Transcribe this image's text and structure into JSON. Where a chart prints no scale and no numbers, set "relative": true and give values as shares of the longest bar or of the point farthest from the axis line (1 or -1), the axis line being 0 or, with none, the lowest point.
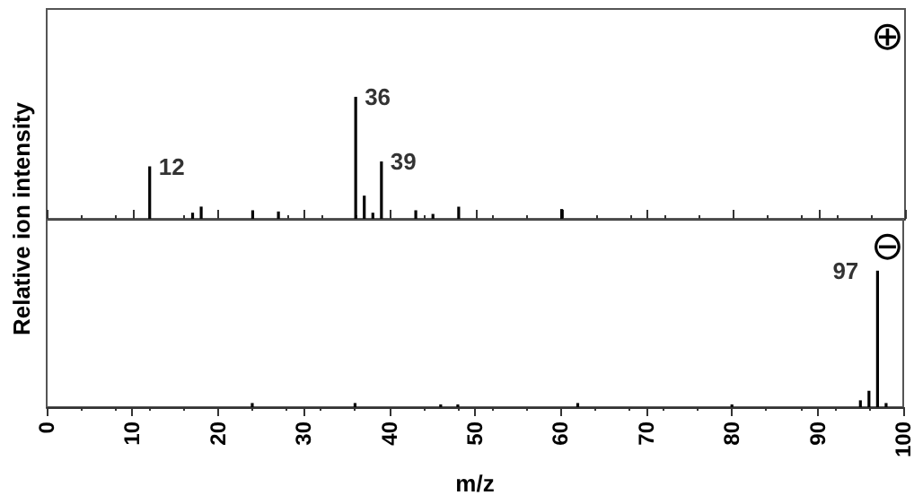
{
  "chart_data": [
    {
      "type": "bar",
      "relative": true,
      "ylabel": "Relative ion intensity",
      "xlim": [
        0,
        100
      ],
      "xticks": [
        0,
        10,
        20,
        30,
        40,
        50,
        60,
        70,
        80,
        90,
        100
      ],
      "tick_labels": false,
      "color": "#000000",
      "x": [
        12,
        17,
        18,
        24,
        27,
        36,
        37,
        38,
        39,
        43,
        45,
        48,
        60
      ],
      "values": [
        0.43,
        0.05,
        0.1,
        0.07,
        0.06,
        1,
        0.19,
        0.05,
        0.47,
        0.07,
        0.04,
        0.1,
        0.08
      ],
      "annotations": [
        "⊕",
        {
          "text": "12",
          "x": 12,
          "y": 0.43
        },
        {
          "text": "36",
          "x": 36,
          "y": 1
        },
        {
          "text": "39",
          "x": 39,
          "y": 0.47
        }
      ]
    },
    {
      "type": "bar",
      "relative": true,
      "xlabel": "m/z",
      "xlim": [
        0,
        100
      ],
      "xticks": [
        0,
        10,
        20,
        30,
        40,
        50,
        60,
        70,
        80,
        90,
        100
      ],
      "tick_labels": "x",
      "color": "#000000",
      "x": [
        24,
        36,
        46,
        48,
        62,
        80,
        95,
        96,
        97,
        98
      ],
      "values": [
        0.03,
        0.03,
        0.02,
        0.02,
        0.03,
        0.02,
        0.05,
        0.12,
        1,
        0.03
      ],
      "annotations": [
        "⊖",
        {
          "text": "97",
          "x": 97,
          "y": 1
        }
      ]
    }
  ]
}
